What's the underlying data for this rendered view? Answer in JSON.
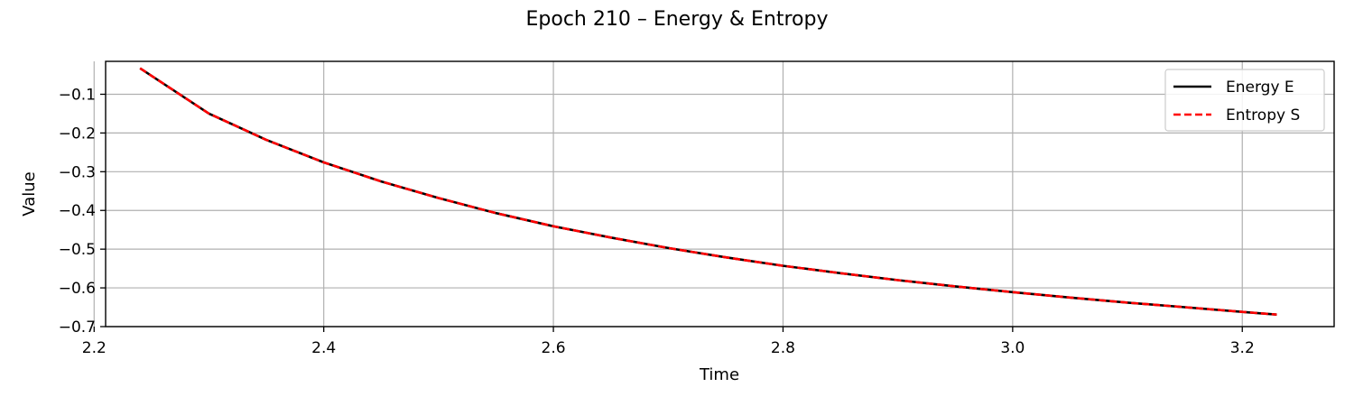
{
  "chart_data": {
    "type": "line",
    "title": "Epoch 210 – Energy & Entropy",
    "xlabel": "Time",
    "ylabel": "Value",
    "xlim": [
      2.21,
      3.28
    ],
    "ylim": [
      -0.7,
      -0.015
    ],
    "xticks": [
      2.2,
      2.4,
      2.6,
      2.8,
      3.0,
      3.2
    ],
    "xtick_labels": [
      "2.2",
      "2.4",
      "2.6",
      "2.8",
      "3.0",
      "3.2"
    ],
    "yticks": [
      -0.1,
      -0.2,
      -0.3,
      -0.4,
      -0.5,
      -0.6,
      -0.7
    ],
    "ytick_labels": [
      "−0.1",
      "−0.2",
      "−0.3",
      "−0.4",
      "−0.5",
      "−0.6",
      "−0.7"
    ],
    "grid": true,
    "legend_position": "top-right",
    "series": [
      {
        "name": "Energy E",
        "color": "#000000",
        "style": "solid",
        "x": [
          2.24,
          2.3,
          2.35,
          2.4,
          2.45,
          2.5,
          2.55,
          2.6,
          2.65,
          2.7,
          2.75,
          2.8,
          2.85,
          2.9,
          2.95,
          3.0,
          3.05,
          3.1,
          3.15,
          3.2,
          3.23
        ],
        "y": [
          -0.033,
          -0.15,
          -0.218,
          -0.276,
          -0.325,
          -0.368,
          -0.407,
          -0.441,
          -0.47,
          -0.497,
          -0.521,
          -0.543,
          -0.562,
          -0.58,
          -0.596,
          -0.611,
          -0.625,
          -0.638,
          -0.65,
          -0.662,
          -0.669
        ]
      },
      {
        "name": "Entropy S",
        "color": "#ff0000",
        "style": "dashed",
        "x": [
          2.24,
          2.3,
          2.35,
          2.4,
          2.45,
          2.5,
          2.55,
          2.6,
          2.65,
          2.7,
          2.75,
          2.8,
          2.85,
          2.9,
          2.95,
          3.0,
          3.05,
          3.1,
          3.15,
          3.2,
          3.23
        ],
        "y": [
          -0.033,
          -0.15,
          -0.218,
          -0.276,
          -0.325,
          -0.368,
          -0.407,
          -0.441,
          -0.47,
          -0.497,
          -0.521,
          -0.543,
          -0.562,
          -0.58,
          -0.596,
          -0.611,
          -0.625,
          -0.638,
          -0.65,
          -0.662,
          -0.669
        ]
      }
    ]
  }
}
